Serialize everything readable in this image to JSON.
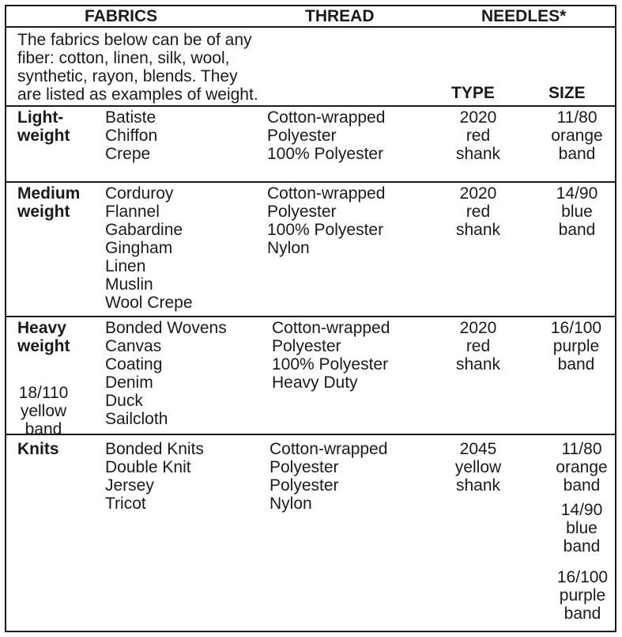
{
  "header": {
    "fabrics": "FABRICS",
    "thread": "THREAD",
    "needles": "NEEDLES*"
  },
  "intro": [
    "The fabrics below can be of any",
    "fiber: cotton, linen, silk, wool,",
    "synthetic, rayon, blends. They",
    "are listed as examples of weight."
  ],
  "subheaders": {
    "type": "TYPE",
    "size": "SIZE"
  },
  "rows": [
    {
      "category": [
        "Light-",
        "weight"
      ],
      "fabrics": [
        "Batiste",
        "Chiffon",
        "Crepe"
      ],
      "thread": [
        "Cotton-wrapped",
        "Polyester",
        "100% Polyester"
      ],
      "type": [
        "2020",
        "red",
        "shank"
      ],
      "sizes": [
        [
          "11/80",
          "orange",
          "band"
        ]
      ]
    },
    {
      "category": [
        "Medium",
        "weight"
      ],
      "fabrics": [
        "Corduroy",
        "Flannel",
        "Gabardine",
        "Gingham",
        "Linen",
        "Muslin",
        "Wool Crepe"
      ],
      "thread": [
        "Cotton-wrapped",
        "Polyester",
        "100% Polyester",
        "Nylon"
      ],
      "type": [
        "2020",
        "red",
        "shank"
      ],
      "sizes": [
        [
          "14/90",
          "blue",
          "band"
        ]
      ]
    },
    {
      "category": [
        "Heavy",
        "weight"
      ],
      "fabrics": [
        "Bonded Wovens",
        "Canvas",
        "Coating",
        "Denim",
        "Duck",
        "Sailcloth"
      ],
      "thread": [
        "Cotton-wrapped",
        "Polyester",
        "100% Polyester",
        "Heavy Duty"
      ],
      "type": [
        "2020",
        "red",
        "shank"
      ],
      "sizes": [
        [
          "16/100",
          "purple",
          "band"
        ],
        [
          "18/110",
          "yellow",
          "band"
        ]
      ]
    },
    {
      "category": [
        "Knits"
      ],
      "fabrics": [
        "Bonded Knits",
        "Double Knit",
        "Jersey",
        "Tricot"
      ],
      "thread": [
        "Cotton-wrapped",
        "Polyester",
        "Polyester",
        "Nylon"
      ],
      "type": [
        "2045",
        "yellow",
        "shank"
      ],
      "sizes": [
        [
          "11/80",
          "orange",
          "band"
        ],
        [
          "14/90",
          "blue",
          "band"
        ],
        [
          "16/100",
          "purple",
          "band"
        ]
      ]
    }
  ]
}
